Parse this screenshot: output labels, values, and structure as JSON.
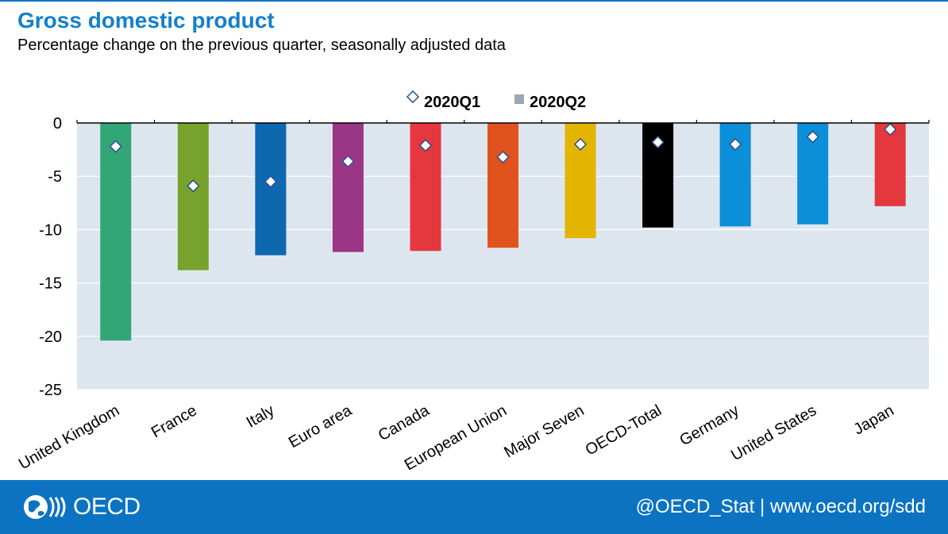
{
  "header": {
    "title": "Gross domestic product",
    "subtitle": "Percentage change on the previous quarter, seasonally adjusted data"
  },
  "footer": {
    "logo_text": "OECD",
    "credit": "@OECD_Stat | www.oecd.org/sdd"
  },
  "colors": {
    "brand": "#0b73c2",
    "plot_bg": "#dde6ee",
    "marker_edge": "#2b4f8f"
  },
  "chart_data": {
    "type": "bar",
    "categories": [
      "United Kingdom",
      "France",
      "Italy",
      "Euro area",
      "Canada",
      "European Union",
      "Major Seven",
      "OECD-Total",
      "Germany",
      "United States",
      "Japan"
    ],
    "bar_colors": [
      "#33a678",
      "#75a32b",
      "#0e68b0",
      "#9b3585",
      "#e5383e",
      "#e0531f",
      "#e3b400",
      "#000000",
      "#0b8fd8",
      "#0b8fd8",
      "#e5383e"
    ],
    "series": [
      {
        "name": "2020Q1",
        "marker": "diamond",
        "values": [
          -2.2,
          -5.9,
          -5.5,
          -3.6,
          -2.1,
          -3.2,
          -2.0,
          -1.8,
          -2.0,
          -1.3,
          -0.6
        ]
      },
      {
        "name": "2020Q2",
        "marker": "bar",
        "values": [
          -20.4,
          -13.8,
          -12.4,
          -12.1,
          -12.0,
          -11.7,
          -10.8,
          -9.8,
          -9.7,
          -9.5,
          -7.8
        ]
      }
    ],
    "yticks": [
      0,
      -5,
      -10,
      -15,
      -20,
      -25
    ],
    "ylim": [
      -25,
      0
    ],
    "grid": true,
    "legend": "top-center"
  }
}
